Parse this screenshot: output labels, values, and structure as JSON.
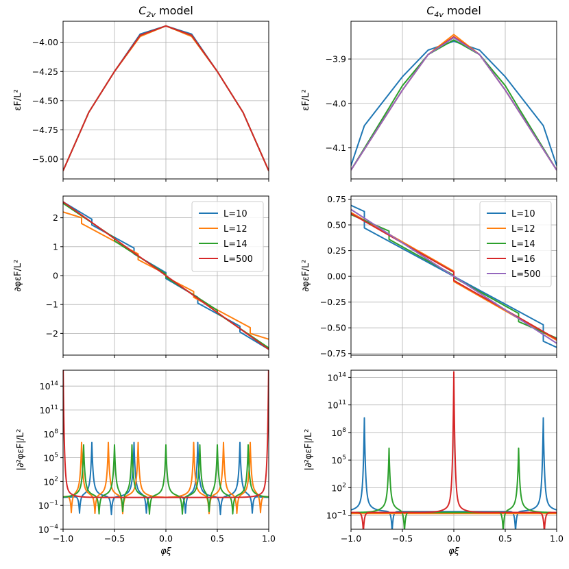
{
  "colors": {
    "L=10": "#1f77b4",
    "L=12": "#ff7f0e",
    "L=14": "#2ca02c",
    "L=16": "#d62728",
    "L=500_c2v": "#d62728",
    "L=500_c4v": "#9467bd"
  },
  "columns": [
    {
      "title_main": "C",
      "title_sub": "2v",
      "title_rest": " model"
    },
    {
      "title_main": "C",
      "title_sub": "4v",
      "title_rest": " model"
    }
  ],
  "xlabel": "φξ",
  "ylabels": {
    "energy": "εF/L²",
    "deriv1": "∂φεF/L²",
    "deriv2": "|∂²φεF|/L²"
  },
  "chart_data": [
    {
      "id": "c2v_energy",
      "type": "line",
      "title": "C2v model",
      "xlim": [
        -1.0,
        1.0
      ],
      "ylim": [
        -5.17,
        -3.82
      ],
      "xticks": [
        -1.0,
        -0.5,
        0.0,
        0.5,
        1.0
      ],
      "xticklabels": [
        "−1.0",
        "−0.5",
        "0.0",
        "0.5",
        "1.0"
      ],
      "yticks": [
        -5.0,
        -4.75,
        -4.5,
        -4.25,
        -4.0
      ],
      "yticklabels": [
        "−5.00",
        "−4.75",
        "−4.50",
        "−4.25",
        "−4.00"
      ],
      "grid": true,
      "ylabel": "εF/L²",
      "series": [
        {
          "name": "L=10",
          "color": "#1f77b4",
          "x": [
            -1.0,
            -0.75,
            -0.5,
            -0.25,
            0.0,
            0.25,
            0.5,
            0.75,
            1.0
          ],
          "y": [
            -5.1,
            -4.6,
            -4.25,
            -3.93,
            -3.86,
            -3.93,
            -4.25,
            -4.6,
            -5.1
          ]
        },
        {
          "name": "L=12",
          "color": "#ff7f0e",
          "x": [
            -1.0,
            -0.75,
            -0.5,
            -0.25,
            0.0,
            0.25,
            0.5,
            0.75,
            1.0
          ],
          "y": [
            -5.1,
            -4.6,
            -4.25,
            -3.95,
            -3.86,
            -3.95,
            -4.25,
            -4.6,
            -5.1
          ]
        },
        {
          "name": "L=14",
          "color": "#2ca02c",
          "x": [
            -1.0,
            -0.75,
            -0.5,
            -0.25,
            0.0,
            0.25,
            0.5,
            0.75,
            1.0
          ],
          "y": [
            -5.1,
            -4.6,
            -4.25,
            -3.94,
            -3.86,
            -3.94,
            -4.25,
            -4.6,
            -5.1
          ]
        },
        {
          "name": "L=500",
          "color": "#d62728",
          "x": [
            -1.0,
            -0.75,
            -0.5,
            -0.25,
            0.0,
            0.25,
            0.5,
            0.75,
            1.0
          ],
          "y": [
            -5.1,
            -4.6,
            -4.25,
            -3.94,
            -3.86,
            -3.94,
            -4.25,
            -4.6,
            -5.1
          ]
        }
      ]
    },
    {
      "id": "c4v_energy",
      "type": "line",
      "title": "C4v model",
      "xlim": [
        -1.0,
        1.0
      ],
      "ylim": [
        -4.17,
        -3.815
      ],
      "xticks": [
        -1.0,
        -0.5,
        0.0,
        0.5,
        1.0
      ],
      "xticklabels": [
        "−1.0",
        "−0.5",
        "0.0",
        "0.5",
        "1.0"
      ],
      "yticks": [
        -4.1,
        -4.0,
        -3.9
      ],
      "yticklabels": [
        "−4.1",
        "−4.0",
        "−3.9"
      ],
      "grid": true,
      "ylabel": "εF/L²",
      "series": [
        {
          "name": "L=10",
          "color": "#1f77b4",
          "x": [
            -1.0,
            -0.87,
            -0.5,
            -0.25,
            0.0,
            0.25,
            0.5,
            0.87,
            1.0
          ],
          "y": [
            -4.14,
            -4.05,
            -3.94,
            -3.88,
            -3.86,
            -3.88,
            -3.94,
            -4.05,
            -4.14
          ]
        },
        {
          "name": "L=12",
          "color": "#ff7f0e",
          "x": [
            -1.0,
            -0.5,
            -0.25,
            0.0,
            0.25,
            0.5,
            1.0
          ],
          "y": [
            -4.15,
            -3.97,
            -3.89,
            -3.845,
            -3.89,
            -3.97,
            -4.15
          ]
        },
        {
          "name": "L=14",
          "color": "#2ca02c",
          "x": [
            -1.0,
            -0.63,
            -0.5,
            -0.25,
            0.0,
            0.25,
            0.5,
            0.63,
            1.0
          ],
          "y": [
            -4.15,
            -4.01,
            -3.96,
            -3.89,
            -3.857,
            -3.89,
            -3.96,
            -4.01,
            -4.15
          ]
        },
        {
          "name": "L=16",
          "color": "#d62728",
          "x": [
            -1.0,
            -0.5,
            -0.25,
            0.0,
            0.25,
            0.5,
            1.0
          ],
          "y": [
            -4.15,
            -3.97,
            -3.89,
            -3.85,
            -3.89,
            -3.97,
            -4.15
          ]
        },
        {
          "name": "L=500",
          "color": "#9467bd",
          "x": [
            -1.0,
            -0.5,
            -0.25,
            0.0,
            0.25,
            0.5,
            1.0
          ],
          "y": [
            -4.15,
            -3.97,
            -3.89,
            -3.852,
            -3.89,
            -3.97,
            -4.15
          ]
        }
      ]
    },
    {
      "id": "c2v_deriv1",
      "type": "line",
      "xlim": [
        -1.0,
        1.0
      ],
      "ylim": [
        -2.75,
        2.75
      ],
      "xticks": [
        -1.0,
        -0.5,
        0.0,
        0.5,
        1.0
      ],
      "xticklabels": [
        "−1.0",
        "−0.5",
        "0.0",
        "0.5",
        "1.0"
      ],
      "yticks": [
        -2,
        -1,
        0,
        1,
        2
      ],
      "yticklabels": [
        "−2",
        "−1",
        "0",
        "1",
        "2"
      ],
      "grid": true,
      "ylabel": "∂φεF/L²",
      "legend": "top-right",
      "series": [
        {
          "name": "L=10",
          "color": "#1f77b4",
          "x": [
            -1.0,
            -0.72,
            -0.72,
            -0.31,
            -0.31,
            0.0,
            0.0,
            0.31,
            0.31,
            0.72,
            0.72,
            1.0
          ],
          "y": [
            2.55,
            1.95,
            1.75,
            0.95,
            0.75,
            0.1,
            -0.1,
            -0.75,
            -0.95,
            -1.75,
            -1.95,
            -2.55
          ]
        },
        {
          "name": "L=12",
          "color": "#ff7f0e",
          "x": [
            -1.0,
            -0.82,
            -0.82,
            -0.27,
            -0.27,
            0.0,
            0.0,
            0.27,
            0.27,
            0.82,
            0.82,
            1.0
          ],
          "y": [
            2.2,
            2.0,
            1.8,
            0.75,
            0.55,
            0.05,
            -0.05,
            -0.55,
            -0.75,
            -1.8,
            -2.0,
            -2.2
          ]
        },
        {
          "name": "L=14",
          "color": "#2ca02c",
          "x": [
            -1.0,
            -0.5,
            -0.5,
            0.0,
            0.0,
            0.5,
            0.5,
            1.0
          ],
          "y": [
            2.5,
            1.3,
            1.2,
            0.05,
            -0.05,
            -1.2,
            -1.3,
            -2.5
          ]
        },
        {
          "name": "L=500",
          "color": "#d62728",
          "x": [
            -1.0,
            1.0
          ],
          "y": [
            2.55,
            -2.55
          ]
        }
      ]
    },
    {
      "id": "c4v_deriv1",
      "type": "line",
      "xlim": [
        -1.0,
        1.0
      ],
      "ylim": [
        -0.765,
        0.78
      ],
      "xticks": [
        -1.0,
        -0.5,
        0.0,
        0.5,
        1.0
      ],
      "xticklabels": [
        "−1.0",
        "−0.5",
        "0.0",
        "0.5",
        "1.0"
      ],
      "yticks": [
        -0.75,
        -0.5,
        -0.25,
        0.0,
        0.25,
        0.5,
        0.75
      ],
      "yticklabels": [
        "−0.75",
        "−0.50",
        "−0.25",
        "0.00",
        "0.25",
        "0.50",
        "0.75"
      ],
      "grid": true,
      "ylabel": "∂φεF/L²",
      "legend": "top-right",
      "series": [
        {
          "name": "L=10",
          "color": "#1f77b4",
          "x": [
            -1.0,
            -0.87,
            -0.87,
            0.0,
            0.0,
            0.87,
            0.87,
            1.0
          ],
          "y": [
            0.69,
            0.63,
            0.47,
            0.0,
            0.0,
            -0.47,
            -0.63,
            -0.69
          ]
        },
        {
          "name": "L=12",
          "color": "#ff7f0e",
          "x": [
            -1.0,
            0.0,
            0.0,
            1.0
          ],
          "y": [
            0.62,
            0.05,
            -0.05,
            -0.62
          ]
        },
        {
          "name": "L=14",
          "color": "#2ca02c",
          "x": [
            -1.0,
            -0.63,
            -0.63,
            0.0,
            0.0,
            0.63,
            0.63,
            1.0
          ],
          "y": [
            0.6,
            0.44,
            0.36,
            0.01,
            -0.01,
            -0.36,
            -0.44,
            -0.6
          ]
        },
        {
          "name": "L=16",
          "color": "#d62728",
          "x": [
            -1.0,
            0.0,
            0.0,
            1.0
          ],
          "y": [
            0.61,
            0.04,
            -0.04,
            -0.61
          ]
        },
        {
          "name": "L=500",
          "color": "#9467bd",
          "x": [
            -1.0,
            1.0
          ],
          "y": [
            0.65,
            -0.65
          ]
        }
      ]
    },
    {
      "id": "c2v_deriv2",
      "type": "line",
      "yscale": "log",
      "xlim": [
        -1.0,
        1.0
      ],
      "ylim": [
        0.0001,
        10000000000000000
      ],
      "xticks": [
        -1.0,
        -0.5,
        0.0,
        0.5,
        1.0
      ],
      "xticklabels": [
        "−1.0",
        "−0.5",
        "0.0",
        "0.5",
        "1.0"
      ],
      "yticks": [
        0.0001,
        0.1,
        100,
        100000,
        100000000,
        100000000000,
        100000000000000
      ],
      "yticklabels": [
        [
          "10",
          "−4"
        ],
        [
          "10",
          "−1"
        ],
        [
          "10",
          "2"
        ],
        [
          "10",
          "5"
        ],
        [
          "10",
          "8"
        ],
        [
          "10",
          "11"
        ],
        [
          "10",
          "14"
        ]
      ],
      "grid": true,
      "xlabel": "φξ",
      "ylabel": "|∂²φεF|/L²",
      "series": [
        {
          "name": "L=10",
          "color": "#1f77b4",
          "peaks": [
            -0.72,
            -0.31,
            0.31,
            0.72
          ],
          "dips": [
            -0.84,
            -0.53,
            -0.19,
            0.19,
            0.53,
            0.84
          ],
          "base": 1.0,
          "peakHeight": 200000
        },
        {
          "name": "L=12",
          "color": "#ff7f0e",
          "peaks": [
            -0.82,
            -0.56,
            -0.27,
            0.27,
            0.56,
            0.82
          ],
          "dips": [
            -0.92,
            -0.69,
            -0.42,
            0.42,
            0.69,
            0.92
          ],
          "base": 1.0,
          "peakHeight": 200000
        },
        {
          "name": "L=14",
          "color": "#2ca02c",
          "peaks": [
            -0.8,
            -0.5,
            -0.33,
            0.0,
            0.33,
            0.5,
            0.8
          ],
          "dips": [
            -0.65,
            -0.42,
            -0.16,
            0.16,
            0.42,
            0.65
          ],
          "base": 1.0,
          "peakHeight": 100000
        },
        {
          "name": "L=500",
          "color": "#d62728",
          "peaks": [
            -1.0,
            1.0
          ],
          "dips": [],
          "base": 1.0,
          "peakHeight": 10000000000000000
        }
      ]
    },
    {
      "id": "c4v_deriv2",
      "type": "line",
      "yscale": "log",
      "xlim": [
        -1.0,
        1.0
      ],
      "ylim": [
        0.003,
        600000000000000
      ],
      "xticks": [
        -1.0,
        -0.5,
        0.0,
        0.5,
        1.0
      ],
      "xticklabels": [
        "−1.0",
        "−0.5",
        "0.0",
        "0.5",
        "1.0"
      ],
      "yticks": [
        0.1,
        100,
        100000,
        100000000,
        100000000000,
        100000000000000
      ],
      "yticklabels": [
        [
          "10",
          "−1"
        ],
        [
          "10",
          "2"
        ],
        [
          "10",
          "5"
        ],
        [
          "10",
          "8"
        ],
        [
          "10",
          "11"
        ],
        [
          "10",
          "14"
        ]
      ],
      "grid": true,
      "xlabel": "φξ",
      "ylabel": "|∂²φεF|/L²",
      "series": [
        {
          "name": "L=10",
          "color": "#1f77b4",
          "peaks": [
            -0.87,
            0.87
          ],
          "dips": [
            -0.6,
            0.6
          ],
          "base": 0.25,
          "peakHeight": 100000000
        },
        {
          "name": "L=12",
          "color": "#ff7f0e",
          "peaks": [],
          "dips": [],
          "base": 0.15,
          "peakHeight": 1
        },
        {
          "name": "L=14",
          "color": "#2ca02c",
          "peaks": [
            -0.63,
            0.63
          ],
          "dips": [
            -0.48,
            0.48
          ],
          "base": 0.2,
          "peakHeight": 50000
        },
        {
          "name": "L=16",
          "color": "#d62728",
          "peaks": [
            0.0
          ],
          "dips": [
            -0.88,
            0.88
          ],
          "base": 0.2,
          "peakHeight": 10000000000000
        }
      ]
    }
  ]
}
